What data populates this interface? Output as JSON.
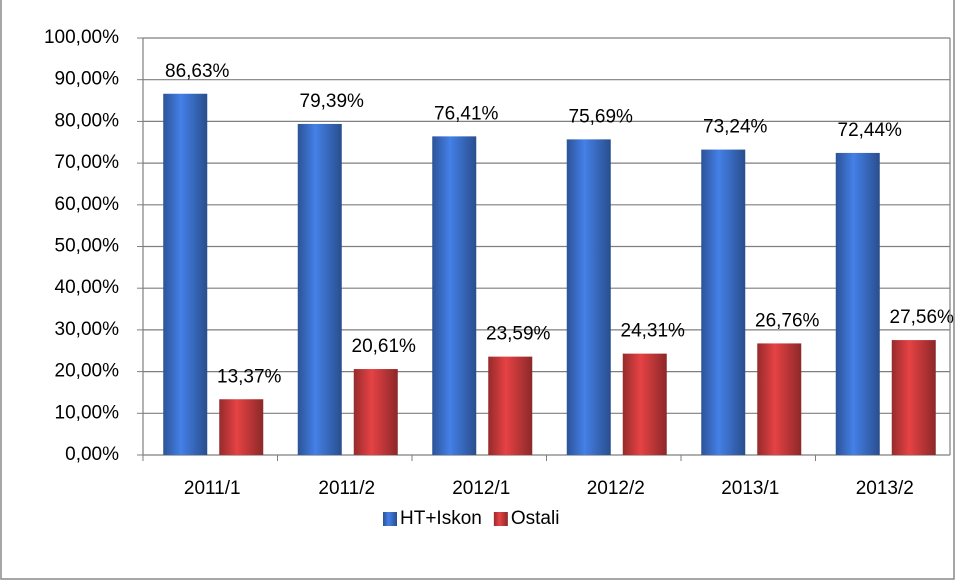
{
  "chart_data": {
    "type": "bar",
    "categories": [
      "2011/1",
      "2011/2",
      "2012/1",
      "2012/2",
      "2013/1",
      "2013/2"
    ],
    "series": [
      {
        "name": "HT+Iskon",
        "color": "#3b6fc9",
        "values": [
          86.63,
          79.39,
          76.41,
          75.69,
          73.24,
          72.44
        ],
        "value_labels": [
          "86,63%",
          "79,39%",
          "76,41%",
          "75,69%",
          "73,24%",
          "72,44%"
        ]
      },
      {
        "name": "Ostali",
        "color": "#c8393b",
        "values": [
          13.37,
          20.61,
          23.59,
          24.31,
          26.76,
          27.56
        ],
        "value_labels": [
          "13,37%",
          "20,61%",
          "23,59%",
          "24,31%",
          "26,76%",
          "27,56%"
        ]
      }
    ],
    "ylim": [
      0,
      100
    ],
    "yticks": [
      {
        "value": 0,
        "label": "0,00%"
      },
      {
        "value": 10,
        "label": "10,00%"
      },
      {
        "value": 20,
        "label": "20,00%"
      },
      {
        "value": 30,
        "label": "30,00%"
      },
      {
        "value": 40,
        "label": "40,00%"
      },
      {
        "value": 50,
        "label": "50,00%"
      },
      {
        "value": 60,
        "label": "60,00%"
      },
      {
        "value": 70,
        "label": "70,00%"
      },
      {
        "value": 80,
        "label": "80,00%"
      },
      {
        "value": 90,
        "label": "90,00%"
      },
      {
        "value": 100,
        "label": "100,00%"
      }
    ],
    "grid": true,
    "legend": "bottom"
  }
}
